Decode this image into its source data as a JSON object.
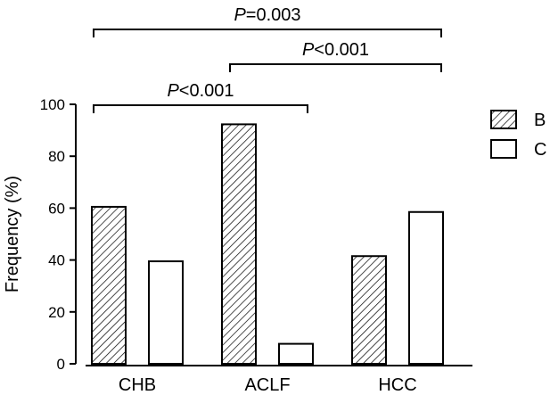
{
  "chart_data": {
    "type": "bar",
    "categories": [
      "CHB",
      "ACLF",
      "HCC"
    ],
    "series": [
      {
        "name": "B",
        "values": [
          60.5,
          92.3,
          41.5
        ],
        "pattern": "hatched",
        "color": "#000000"
      },
      {
        "name": "C",
        "values": [
          39.5,
          7.7,
          58.5
        ],
        "pattern": "open",
        "color": "#ffffff"
      }
    ],
    "xlabel": "",
    "ylabel": "Frequency (%)",
    "ylim": [
      0,
      100
    ],
    "yticks": [
      0,
      20,
      40,
      60,
      80,
      100
    ],
    "grid": false,
    "legend": {
      "placement": "top-right",
      "entries": [
        "B",
        "C"
      ]
    },
    "significance": [
      {
        "from": "CHB",
        "to": "HCC",
        "p_symbol": "P",
        "p_text": "=0.003"
      },
      {
        "from": "ACLF",
        "to": "HCC",
        "p_symbol": "P",
        "p_text": "<0.001"
      },
      {
        "from": "CHB",
        "to": "ACLF",
        "p_symbol": "P",
        "p_text": "<0.001"
      }
    ]
  }
}
